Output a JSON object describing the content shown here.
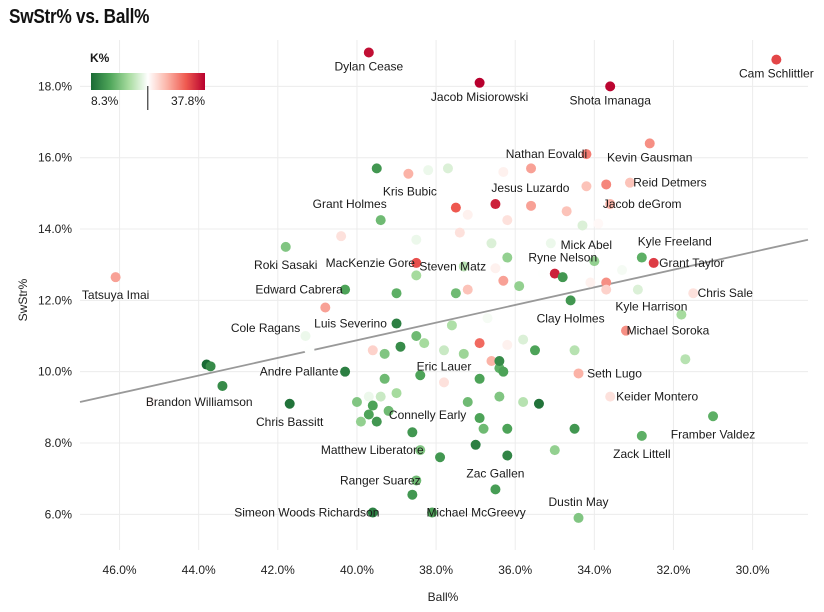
{
  "chart_data": {
    "type": "scatter",
    "title": "SwStr% vs. Ball%",
    "xlabel": "Ball%",
    "ylabel": "SwStr%",
    "x_reversed": true,
    "xlim": [
      47.0,
      28.6
    ],
    "ylim": [
      5.0,
      19.3
    ],
    "x_ticks": [
      46.0,
      44.0,
      42.0,
      40.0,
      38.0,
      36.0,
      34.0,
      32.0,
      30.0
    ],
    "x_tick_labels": [
      "46.0%",
      "44.0%",
      "42.0%",
      "40.0%",
      "38.0%",
      "36.0%",
      "34.0%",
      "32.0%",
      "30.0%"
    ],
    "y_ticks": [
      6.0,
      8.0,
      10.0,
      12.0,
      14.0,
      16.0,
      18.0
    ],
    "y_tick_labels": [
      "6.0%",
      "8.0%",
      "10.0%",
      "12.0%",
      "14.0%",
      "16.0%",
      "18.0%"
    ],
    "grid": true,
    "trend_line": {
      "x1": 47.0,
      "y1": 9.15,
      "x2": 28.6,
      "y2": 13.7
    },
    "legend": {
      "title": "K%",
      "min_label": "8.3%",
      "max_label": "37.8%",
      "min": 8.3,
      "max": 37.8,
      "marker": 23.0,
      "colors": [
        "#1a6b35",
        "#4fa65a",
        "#a8dca0",
        "#ffffff",
        "#fbb4a8",
        "#ef5a50",
        "#b8002e"
      ]
    },
    "points": [
      {
        "x": 39.7,
        "y": 18.95,
        "k": 37.0,
        "name": "Dylan Cease",
        "lx": 0,
        "ly": 18
      },
      {
        "x": 36.9,
        "y": 18.1,
        "k": 37.8,
        "name": "Jacob Misiorowski",
        "lx": 0,
        "ly": 18
      },
      {
        "x": 33.6,
        "y": 18.0,
        "k": 37.5,
        "name": "Shota Imanaga",
        "lx": 0,
        "ly": 18
      },
      {
        "x": 29.4,
        "y": 18.75,
        "k": 34.0,
        "name": "Cam Schlittler",
        "lx": 0,
        "ly": 18
      },
      {
        "x": 34.2,
        "y": 16.1,
        "k": 31.0,
        "name": "Nathan Eovaldi",
        "lx": -40,
        "ly": 4
      },
      {
        "x": 32.6,
        "y": 16.4,
        "k": 30.0,
        "name": "Kevin Gausman",
        "lx": 0,
        "ly": 18
      },
      {
        "x": 35.6,
        "y": 15.7,
        "k": 29.0
      },
      {
        "x": 33.1,
        "y": 15.3,
        "k": 27.0,
        "name": "Reid Detmers",
        "lx": 40,
        "ly": 4
      },
      {
        "x": 33.7,
        "y": 15.25,
        "k": 30.5
      },
      {
        "x": 34.2,
        "y": 15.2,
        "k": 27.0
      },
      {
        "x": 38.7,
        "y": 15.55,
        "k": 28.0
      },
      {
        "x": 38.2,
        "y": 15.65,
        "k": 22.0
      },
      {
        "x": 37.7,
        "y": 15.7,
        "k": 21.0
      },
      {
        "x": 36.3,
        "y": 15.6,
        "k": 24.0
      },
      {
        "x": 39.5,
        "y": 15.7,
        "k": 12.0
      },
      {
        "x": 37.5,
        "y": 14.6,
        "k": 33.0,
        "name": "Kris Bubic",
        "lx": -46,
        "ly": -12
      },
      {
        "x": 36.5,
        "y": 14.7,
        "k": 36.0,
        "name": "Jesus Luzardo",
        "lx": 35,
        "ly": -12
      },
      {
        "x": 35.6,
        "y": 14.65,
        "k": 29.0
      },
      {
        "x": 34.7,
        "y": 14.5,
        "k": 27.0
      },
      {
        "x": 33.6,
        "y": 14.7,
        "k": 28.0,
        "name": "Jacob deGrom",
        "lx": 32,
        "ly": 4
      },
      {
        "x": 36.2,
        "y": 14.25,
        "k": 25.0
      },
      {
        "x": 37.2,
        "y": 14.4,
        "k": 24.0
      },
      {
        "x": 37.4,
        "y": 13.9,
        "k": 25.0
      },
      {
        "x": 39.4,
        "y": 14.25,
        "k": 15.0,
        "name": "Grant Holmes",
        "lx": -31,
        "ly": -12
      },
      {
        "x": 40.4,
        "y": 13.8,
        "k": 25.0
      },
      {
        "x": 41.8,
        "y": 13.5,
        "k": 16.0,
        "name": "Roki Sasaki",
        "lx": 0,
        "ly": 22
      },
      {
        "x": 38.5,
        "y": 13.7,
        "k": 22.0
      },
      {
        "x": 36.6,
        "y": 13.6,
        "k": 21.0
      },
      {
        "x": 35.1,
        "y": 13.6,
        "k": 22.0
      },
      {
        "x": 34.3,
        "y": 14.1,
        "k": 21.0
      },
      {
        "x": 33.9,
        "y": 14.15,
        "k": 23.5
      },
      {
        "x": 34.0,
        "y": 13.1,
        "k": 17.0,
        "name": "Mick Abel",
        "lx": -8,
        "ly": -12
      },
      {
        "x": 32.8,
        "y": 13.2,
        "k": 14.0,
        "name": "Kyle Freeland",
        "lx": 33,
        "ly": -12
      },
      {
        "x": 32.5,
        "y": 13.05,
        "k": 34.5,
        "name": "Grant Taylor",
        "lx": 38,
        "ly": 4
      },
      {
        "x": 33.3,
        "y": 12.85,
        "k": 22.5
      },
      {
        "x": 33.7,
        "y": 12.5,
        "k": 30.0
      },
      {
        "x": 34.1,
        "y": 12.5,
        "k": 24.0
      },
      {
        "x": 33.7,
        "y": 12.3,
        "k": 26.0
      },
      {
        "x": 32.9,
        "y": 12.3,
        "k": 21.0
      },
      {
        "x": 31.5,
        "y": 12.2,
        "k": 25.0,
        "name": "Chris Sale",
        "lx": 32,
        "ly": 4
      },
      {
        "x": 38.5,
        "y": 13.05,
        "k": 33.5,
        "name": "MacKenzie Gore",
        "lx": -46,
        "ly": 4
      },
      {
        "x": 36.2,
        "y": 13.2,
        "k": 17.0
      },
      {
        "x": 36.5,
        "y": 12.9,
        "k": 24.0
      },
      {
        "x": 37.3,
        "y": 12.95,
        "k": 19.0,
        "name": "Steven Matz",
        "lx": -11,
        "ly": 4
      },
      {
        "x": 35.3,
        "y": 12.75,
        "k": 23.0
      },
      {
        "x": 35.0,
        "y": 12.75,
        "k": 36.0,
        "name": "Ryne Nelson",
        "lx": 8,
        "ly": -12
      },
      {
        "x": 34.8,
        "y": 12.65,
        "k": 12.0
      },
      {
        "x": 36.3,
        "y": 12.55,
        "k": 29.0
      },
      {
        "x": 35.9,
        "y": 12.4,
        "k": 17.0
      },
      {
        "x": 37.2,
        "y": 12.3,
        "k": 27.0
      },
      {
        "x": 37.5,
        "y": 12.2,
        "k": 15.0
      },
      {
        "x": 38.5,
        "y": 12.7,
        "k": 18.0
      },
      {
        "x": 39.0,
        "y": 12.2,
        "k": 14.0
      },
      {
        "x": 40.3,
        "y": 12.3,
        "k": 13.0,
        "name": "Edward Cabrera",
        "lx": -46,
        "ly": 4
      },
      {
        "x": 40.8,
        "y": 11.8,
        "k": 29.0
      },
      {
        "x": 34.6,
        "y": 12.0,
        "k": 12.0,
        "name": "Clay Holmes",
        "lx": 0,
        "ly": 22
      },
      {
        "x": 31.8,
        "y": 11.6,
        "k": 18.0,
        "name": "Kyle Harrison",
        "lx": -30,
        "ly": -4
      },
      {
        "x": 33.2,
        "y": 11.15,
        "k": 30.0,
        "name": "Michael Soroka",
        "lx": 42,
        "ly": 4
      },
      {
        "x": 39.0,
        "y": 11.35,
        "k": 10.0,
        "name": "Luis Severino",
        "lx": -46,
        "ly": 4
      },
      {
        "x": 38.5,
        "y": 11.0,
        "k": 15.0
      },
      {
        "x": 38.3,
        "y": 10.8,
        "k": 18.0
      },
      {
        "x": 37.6,
        "y": 11.3,
        "k": 18.5
      },
      {
        "x": 36.7,
        "y": 11.5,
        "k": 22.5
      },
      {
        "x": 35.8,
        "y": 10.9,
        "k": 21.0
      },
      {
        "x": 41.3,
        "y": 11.0,
        "k": 22.0,
        "name": "Cole Ragans",
        "lx": -40,
        "ly": -4
      },
      {
        "x": 41.2,
        "y": 10.6,
        "k": 23.0
      },
      {
        "x": 39.6,
        "y": 10.6,
        "k": 26.0
      },
      {
        "x": 39.3,
        "y": 10.5,
        "k": 16.0
      },
      {
        "x": 38.9,
        "y": 10.7,
        "k": 11.0
      },
      {
        "x": 37.8,
        "y": 10.6,
        "k": 20.0
      },
      {
        "x": 37.3,
        "y": 10.5,
        "k": 17.5
      },
      {
        "x": 36.9,
        "y": 10.8,
        "k": 32.0
      },
      {
        "x": 36.6,
        "y": 10.3,
        "k": 28.0
      },
      {
        "x": 36.4,
        "y": 10.1,
        "k": 14.0
      },
      {
        "x": 36.4,
        "y": 10.3,
        "k": 11.0
      },
      {
        "x": 35.5,
        "y": 10.6,
        "k": 13.0
      },
      {
        "x": 34.5,
        "y": 10.6,
        "k": 19.0
      },
      {
        "x": 36.2,
        "y": 10.75,
        "k": 24.0
      },
      {
        "x": 31.7,
        "y": 10.35,
        "k": 19.0
      },
      {
        "x": 43.8,
        "y": 10.2,
        "k": 8.3
      },
      {
        "x": 43.7,
        "y": 10.15,
        "k": 11.0
      },
      {
        "x": 43.4,
        "y": 9.6,
        "k": 11.0
      },
      {
        "x": 40.3,
        "y": 10.0,
        "k": 10.0,
        "name": "Andre Pallante",
        "lx": -46,
        "ly": 4
      },
      {
        "x": 39.3,
        "y": 9.8,
        "k": 15.0
      },
      {
        "x": 38.4,
        "y": 9.9,
        "k": 13.0
      },
      {
        "x": 37.8,
        "y": 9.7,
        "k": 25.0,
        "name": "Eric Lauer",
        "lx": 0,
        "ly": -12
      },
      {
        "x": 36.9,
        "y": 9.8,
        "k": 13.0
      },
      {
        "x": 36.3,
        "y": 10.0,
        "k": 13.0
      },
      {
        "x": 34.4,
        "y": 9.95,
        "k": 28.0,
        "name": "Seth Lugo",
        "lx": 36,
        "ly": 4
      },
      {
        "x": 45.2,
        "y": 9.15,
        "k": 23.5,
        "name": "Brandon Williamson",
        "lx": 48,
        "ly": 4
      },
      {
        "x": 40.0,
        "y": 9.15,
        "k": 16.0
      },
      {
        "x": 39.7,
        "y": 9.3,
        "k": 22.0
      },
      {
        "x": 39.4,
        "y": 9.3,
        "k": 20.0
      },
      {
        "x": 39.0,
        "y": 9.4,
        "k": 18.0
      },
      {
        "x": 37.2,
        "y": 9.15,
        "k": 15.0
      },
      {
        "x": 36.4,
        "y": 9.3,
        "k": 16.0
      },
      {
        "x": 35.8,
        "y": 9.15,
        "k": 19.0
      },
      {
        "x": 35.4,
        "y": 9.1,
        "k": 9.0
      },
      {
        "x": 33.6,
        "y": 9.3,
        "k": 25.0,
        "name": "Keider Montero",
        "lx": 47,
        "ly": 4
      },
      {
        "x": 41.7,
        "y": 9.1,
        "k": 9.0,
        "name": "Chris Bassitt",
        "lx": 0,
        "ly": 22
      },
      {
        "x": 39.6,
        "y": 9.05,
        "k": 13.0
      },
      {
        "x": 39.7,
        "y": 8.8,
        "k": 13.0
      },
      {
        "x": 39.2,
        "y": 8.9,
        "k": 15.0,
        "name": "Connelly Early",
        "lx": 39,
        "ly": 8
      },
      {
        "x": 39.9,
        "y": 8.6,
        "k": 17.0
      },
      {
        "x": 39.5,
        "y": 8.6,
        "k": 12.0
      },
      {
        "x": 36.9,
        "y": 8.7,
        "k": 13.0
      },
      {
        "x": 36.8,
        "y": 8.4,
        "k": 15.0
      },
      {
        "x": 36.2,
        "y": 8.4,
        "k": 13.0
      },
      {
        "x": 38.6,
        "y": 8.3,
        "k": 12.0
      },
      {
        "x": 34.5,
        "y": 8.4,
        "k": 12.0
      },
      {
        "x": 31.0,
        "y": 8.75,
        "k": 14.0,
        "name": "Framber Valdez",
        "lx": 0,
        "ly": 22
      },
      {
        "x": 32.8,
        "y": 8.2,
        "k": 14.0,
        "name": "Zack Littell",
        "lx": 0,
        "ly": 22
      },
      {
        "x": 38.4,
        "y": 7.8,
        "k": 16.0,
        "name": "Matthew Liberatore",
        "lx": -48,
        "ly": 4
      },
      {
        "x": 37.9,
        "y": 7.6,
        "k": 12.0
      },
      {
        "x": 37.0,
        "y": 7.95,
        "k": 10.0
      },
      {
        "x": 36.2,
        "y": 7.65,
        "k": 10.5
      },
      {
        "x": 35.0,
        "y": 7.8,
        "k": 17.0
      },
      {
        "x": 38.5,
        "y": 6.95,
        "k": 15.0,
        "name": "Ranger Suarez",
        "lx": -36,
        "ly": 4
      },
      {
        "x": 38.6,
        "y": 6.55,
        "k": 12.0
      },
      {
        "x": 36.5,
        "y": 6.7,
        "k": 12.5,
        "name": "Zac Gallen",
        "lx": 0,
        "ly": -12
      },
      {
        "x": 39.6,
        "y": 6.05,
        "k": 10.0,
        "name": "Simeon Woods Richardson",
        "lx": -66,
        "ly": 4
      },
      {
        "x": 38.1,
        "y": 6.05,
        "k": 13.0,
        "name": "Michael McGreevy",
        "lx": 44,
        "ly": 4
      },
      {
        "x": 34.4,
        "y": 5.9,
        "k": 16.0,
        "name": "Dustin May",
        "lx": 0,
        "ly": -12
      },
      {
        "x": 46.1,
        "y": 12.65,
        "k": 29.0,
        "name": "Tatsuya Imai",
        "lx": 0,
        "ly": 22
      }
    ]
  }
}
